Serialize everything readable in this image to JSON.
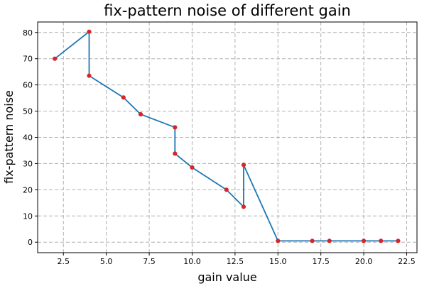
{
  "chart_data": {
    "type": "line",
    "title": "fix-pattern noise of different gain",
    "xlabel": "gain value",
    "ylabel": "fix-pattern noise",
    "xlim": [
      1.0,
      23.1
    ],
    "ylim": [
      -4.0,
      84.0
    ],
    "xticks": [
      2.5,
      5.0,
      7.5,
      10.0,
      12.5,
      15.0,
      17.5,
      20.0,
      22.5
    ],
    "xtick_labels": [
      "2.5",
      "5.0",
      "7.5",
      "10.0",
      "12.5",
      "15.0",
      "17.5",
      "20.0",
      "22.5"
    ],
    "yticks": [
      0,
      10,
      20,
      30,
      40,
      50,
      60,
      70,
      80
    ],
    "ytick_labels": [
      "0",
      "10",
      "20",
      "30",
      "40",
      "50",
      "60",
      "70",
      "80"
    ],
    "grid": true,
    "series": [
      {
        "x": [
          2,
          4,
          4,
          6,
          7,
          9,
          9,
          10,
          12,
          13,
          13,
          15,
          17,
          18,
          20,
          21,
          22
        ],
        "y": [
          70,
          80.3,
          63.5,
          55.2,
          48.8,
          43.8,
          33.8,
          28.5,
          20,
          13.5,
          29.5,
          0.5,
          0.5,
          0.5,
          0.5,
          0.5,
          0.5
        ],
        "line_color": "#1f77b4",
        "marker_color": "#d62728"
      }
    ]
  }
}
